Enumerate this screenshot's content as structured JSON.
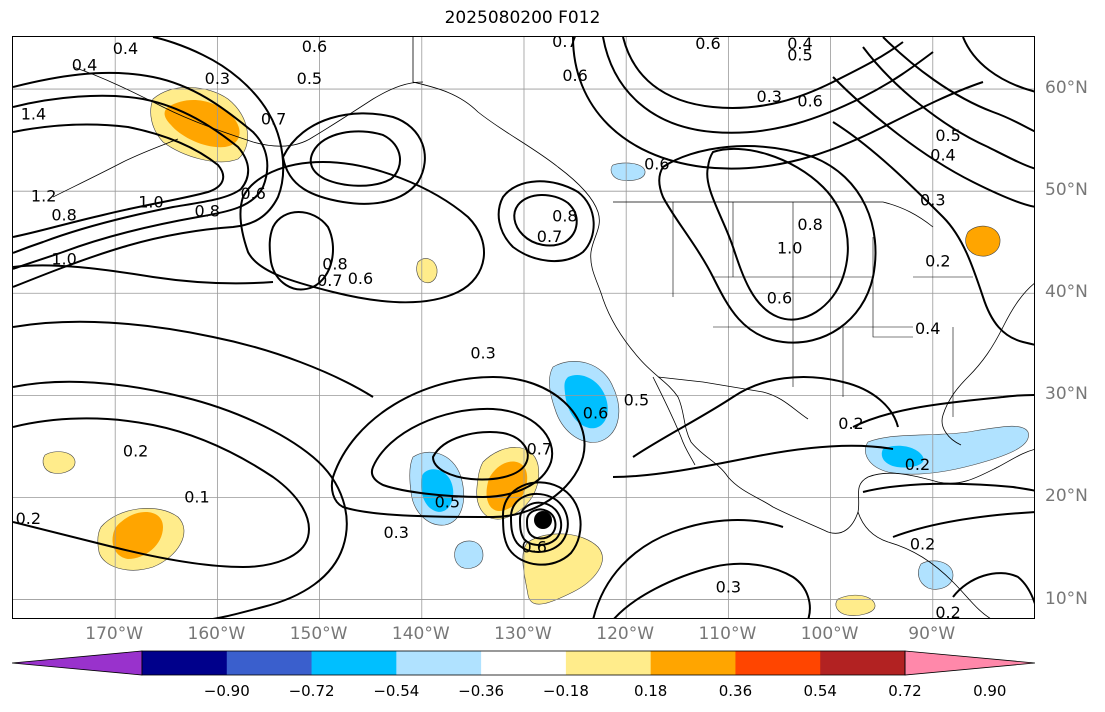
{
  "title": "2025080200 F012",
  "lon_ticks": [
    {
      "label": "170°W",
      "lon": -170
    },
    {
      "label": "160°W",
      "lon": -160
    },
    {
      "label": "150°W",
      "lon": -150
    },
    {
      "label": "140°W",
      "lon": -140
    },
    {
      "label": "130°W",
      "lon": -130
    },
    {
      "label": "120°W",
      "lon": -120
    },
    {
      "label": "110°W",
      "lon": -110
    },
    {
      "label": "100°W",
      "lon": -100
    },
    {
      "label": "90°W",
      "lon": -90
    }
  ],
  "lat_ticks": [
    {
      "label": "60°N",
      "lat": 60
    },
    {
      "label": "50°N",
      "lat": 50
    },
    {
      "label": "40°N",
      "lat": 40
    },
    {
      "label": "30°N",
      "lat": 30
    },
    {
      "label": "20°N",
      "lat": 20
    },
    {
      "label": "10°N",
      "lat": 10
    }
  ],
  "colorbar": {
    "colors": [
      "#9932cc",
      "#00008b",
      "#3a5fcd",
      "#00bfff",
      "#b0e2ff",
      "#ffffff",
      "#ffec8b",
      "#ffa500",
      "#ff4500",
      "#b22222",
      "#ff88aa"
    ],
    "ticks": [
      "−0.90",
      "−0.72",
      "−0.54",
      "−0.36",
      "−0.18",
      "0.18",
      "0.36",
      "0.54",
      "0.72",
      "0.90"
    ]
  },
  "contour_labels": [
    {
      "text": "0.6",
      "lon": -150.5,
      "lat": 64.2
    },
    {
      "text": "0.7",
      "lon": -126,
      "lat": 64.7
    },
    {
      "text": "0.6",
      "lon": -112,
      "lat": 64.5
    },
    {
      "text": "0.4",
      "lon": -103,
      "lat": 64.5
    },
    {
      "text": "0.5",
      "lon": -103,
      "lat": 63.4
    },
    {
      "text": "0.5",
      "lon": -151,
      "lat": 61.1
    },
    {
      "text": "0.6",
      "lon": -125,
      "lat": 61.4
    },
    {
      "text": "0.3",
      "lon": -160,
      "lat": 61.1
    },
    {
      "text": "0.4",
      "lon": -169,
      "lat": 64
    },
    {
      "text": "0.4",
      "lon": -173,
      "lat": 62.4
    },
    {
      "text": "0.7",
      "lon": -154.5,
      "lat": 57.1
    },
    {
      "text": "1.4",
      "lon": -178,
      "lat": 57.6
    },
    {
      "text": "0.3",
      "lon": -106,
      "lat": 59.3
    },
    {
      "text": "0.6",
      "lon": -102,
      "lat": 58.9
    },
    {
      "text": "0.6",
      "lon": -117,
      "lat": 52.7
    },
    {
      "text": "0.4",
      "lon": -89,
      "lat": 53.6
    },
    {
      "text": "0.5",
      "lon": -88.5,
      "lat": 55.5
    },
    {
      "text": "0.3",
      "lon": -90,
      "lat": 49.2
    },
    {
      "text": "1.2",
      "lon": -177,
      "lat": 49.6
    },
    {
      "text": "1.0",
      "lon": -166.5,
      "lat": 49
    },
    {
      "text": "0.8",
      "lon": -175,
      "lat": 47.7
    },
    {
      "text": "0.8",
      "lon": -161,
      "lat": 48.1
    },
    {
      "text": "0.6",
      "lon": -156.5,
      "lat": 49.8
    },
    {
      "text": "1.0",
      "lon": -175,
      "lat": 43.4
    },
    {
      "text": "0.8",
      "lon": -148.5,
      "lat": 42.9
    },
    {
      "text": "0.7",
      "lon": -149,
      "lat": 41.3
    },
    {
      "text": "0.6",
      "lon": -146,
      "lat": 41.5
    },
    {
      "text": "0.8",
      "lon": -126,
      "lat": 47.6
    },
    {
      "text": "0.7",
      "lon": -127.5,
      "lat": 45.6
    },
    {
      "text": "0.8",
      "lon": -102,
      "lat": 46.8
    },
    {
      "text": "1.0",
      "lon": -104,
      "lat": 44.5
    },
    {
      "text": "0.6",
      "lon": -105,
      "lat": 39.6
    },
    {
      "text": "0.2",
      "lon": -89.5,
      "lat": 43.2
    },
    {
      "text": "0.4",
      "lon": -90.5,
      "lat": 36.6
    },
    {
      "text": "0.3",
      "lon": -134,
      "lat": 34.2
    },
    {
      "text": "0.5",
      "lon": -119,
      "lat": 29.6
    },
    {
      "text": "0.6",
      "lon": -123,
      "lat": 28.3
    },
    {
      "text": "0.7",
      "lon": -128.5,
      "lat": 24.8
    },
    {
      "text": "0.2",
      "lon": -98,
      "lat": 27.3
    },
    {
      "text": "0.2",
      "lon": -91.5,
      "lat": 23.3
    },
    {
      "text": "0.2",
      "lon": -168,
      "lat": 24.6
    },
    {
      "text": "0.1",
      "lon": -162,
      "lat": 20.1
    },
    {
      "text": "0.2",
      "lon": -178.5,
      "lat": 18
    },
    {
      "text": "0.5",
      "lon": -137.5,
      "lat": 19.6
    },
    {
      "text": "0.3",
      "lon": -142.5,
      "lat": 16.6
    },
    {
      "text": "0.6",
      "lon": -129,
      "lat": 15.2
    },
    {
      "text": "0.3",
      "lon": -110,
      "lat": 11.3
    },
    {
      "text": "0.2",
      "lon": -91,
      "lat": 15.5
    },
    {
      "text": "0.2",
      "lon": -88.5,
      "lat": 8.8
    }
  ]
}
